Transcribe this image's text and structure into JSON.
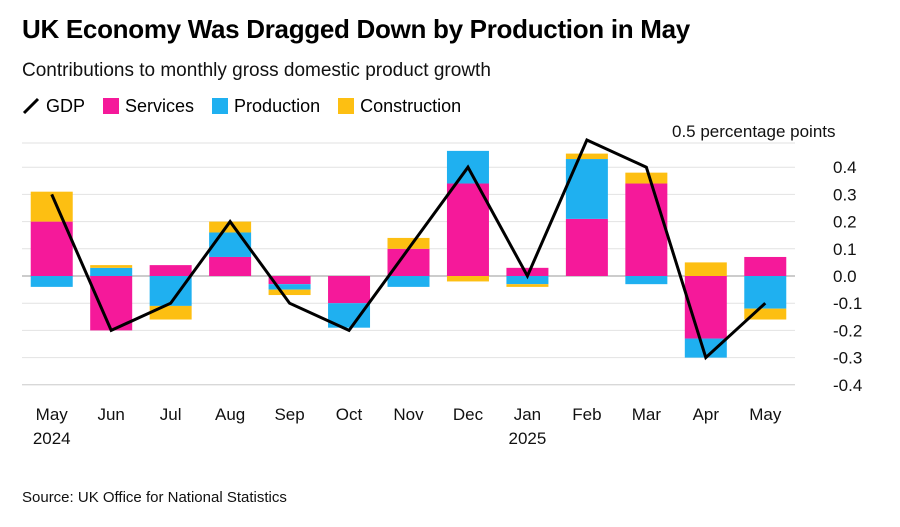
{
  "title": "UK Economy Was Dragged Down by Production in May",
  "subtitle": "Contributions to monthly gross domestic product growth",
  "source": "Source: UK Office for National Statistics",
  "legend": [
    {
      "name": "GDP",
      "kind": "line",
      "color": "#000000"
    },
    {
      "name": "Services",
      "kind": "bar",
      "color": "#f5199a"
    },
    {
      "name": "Production",
      "kind": "bar",
      "color": "#1fb0f0"
    },
    {
      "name": "Construction",
      "kind": "bar",
      "color": "#fdbf12"
    }
  ],
  "chart_data": {
    "type": "bar",
    "stacked": true,
    "categories": [
      "May",
      "Jun",
      "Jul",
      "Aug",
      "Sep",
      "Oct",
      "Nov",
      "Dec",
      "Jan",
      "Feb",
      "Mar",
      "Apr",
      "May"
    ],
    "year_labels": [
      {
        "category_index": 0,
        "label": "2024"
      },
      {
        "category_index": 8,
        "label": "2025"
      }
    ],
    "series": [
      {
        "name": "Services",
        "color": "#f5199a",
        "values": [
          0.2,
          -0.2,
          0.04,
          0.07,
          -0.03,
          -0.1,
          0.1,
          0.34,
          0.03,
          0.21,
          0.34,
          -0.23,
          0.07
        ]
      },
      {
        "name": "Production",
        "color": "#1fb0f0",
        "values": [
          -0.04,
          0.03,
          -0.11,
          0.09,
          -0.02,
          -0.09,
          -0.04,
          0.12,
          -0.03,
          0.22,
          -0.03,
          -0.07,
          -0.12
        ]
      },
      {
        "name": "Construction",
        "color": "#fdbf12",
        "values": [
          0.11,
          0.01,
          -0.05,
          0.04,
          -0.02,
          0.0,
          0.04,
          -0.02,
          -0.01,
          0.02,
          0.04,
          0.05,
          -0.04
        ]
      }
    ],
    "line": {
      "name": "GDP",
      "color": "#000000",
      "values": [
        0.3,
        -0.2,
        -0.1,
        0.2,
        -0.1,
        -0.2,
        0.1,
        0.4,
        0.0,
        0.5,
        0.4,
        -0.3,
        -0.1
      ]
    },
    "y_ticks": [
      0.4,
      0.3,
      0.2,
      0.1,
      0.0,
      -0.1,
      -0.2,
      -0.3,
      -0.4
    ],
    "y_tick_labels": [
      "0.4",
      "0.3",
      "0.2",
      "0.1",
      "0.0",
      "-0.1",
      "-0.2",
      "-0.3",
      "-0.4"
    ],
    "y_top_label": "0.5 percentage points",
    "ylim": [
      -0.4,
      0.5
    ],
    "grid": "horizontal",
    "legend_position": "top-left"
  }
}
